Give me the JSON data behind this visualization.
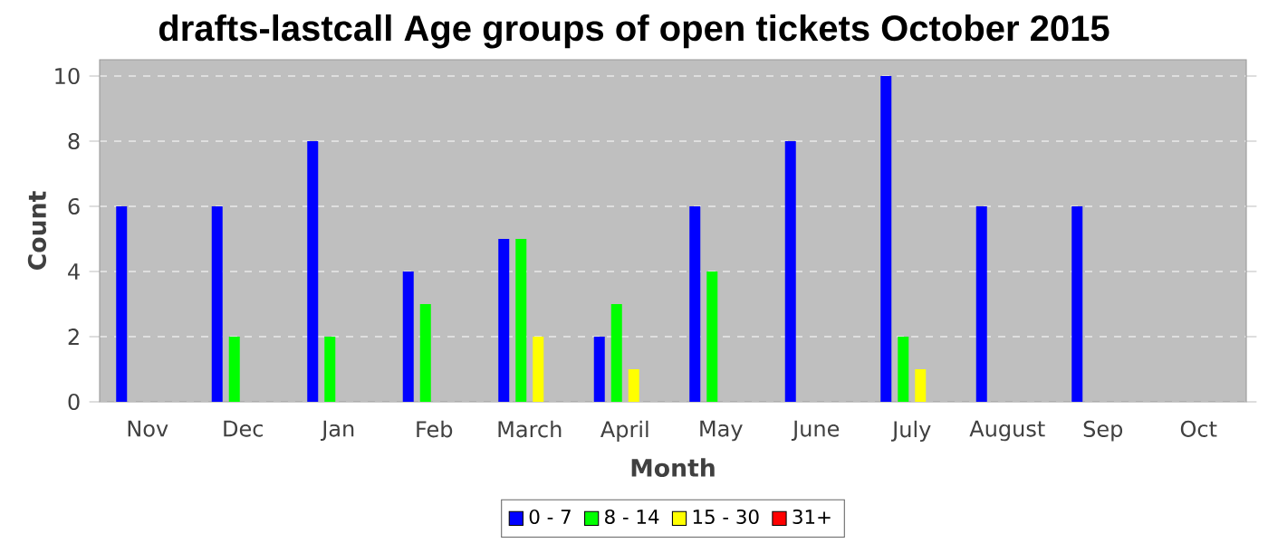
{
  "chart_data": {
    "type": "bar",
    "title": "drafts-lastcall Age groups of open tickets October 2015",
    "xlabel": "Month",
    "ylabel": "Count",
    "categories": [
      "Nov",
      "Dec",
      "Jan",
      "Feb",
      "March",
      "April",
      "May",
      "June",
      "July",
      "August",
      "Sep",
      "Oct"
    ],
    "series": [
      {
        "name": "0 - 7",
        "color": "#0000ff",
        "values": [
          6,
          6,
          8,
          4,
          5,
          2,
          6,
          8,
          10,
          6,
          6,
          null
        ]
      },
      {
        "name": "8 - 14",
        "color": "#00ff00",
        "values": [
          null,
          2,
          2,
          3,
          5,
          3,
          4,
          null,
          2,
          null,
          null,
          null
        ]
      },
      {
        "name": "15 - 30",
        "color": "#ffff00",
        "values": [
          null,
          null,
          null,
          null,
          2,
          1,
          null,
          null,
          1,
          null,
          null,
          null
        ]
      },
      {
        "name": "31+",
        "color": "#ff0000",
        "values": [
          null,
          null,
          null,
          null,
          null,
          null,
          null,
          null,
          null,
          null,
          null,
          null
        ]
      }
    ],
    "ylim": [
      0,
      10.5
    ],
    "yticks": [
      0,
      2,
      4,
      6,
      8,
      10
    ],
    "grid": "y",
    "legend": "bottom"
  }
}
